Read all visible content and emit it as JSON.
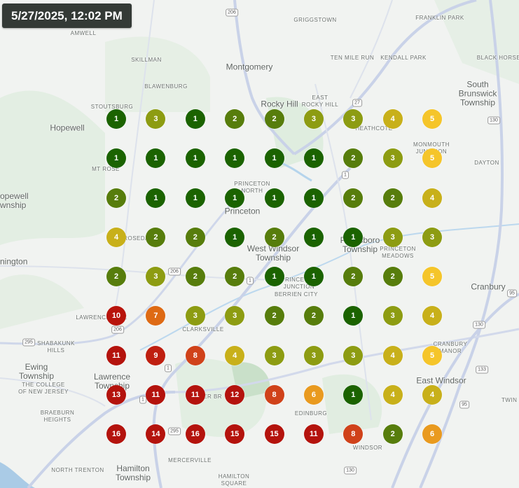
{
  "timestamp": "5/27/2025, 12:02 PM",
  "colors": {
    "1": "#1b6300",
    "2": "#577d0c",
    "3": "#8d9c12",
    "4": "#c8b01a",
    "5": "#f5c52a",
    "6": "#e99a1f",
    "7": "#de6a14",
    "8": "#d0421a",
    "9": "#bf1f10",
    "10": "#b8140c",
    "11": "#b4130d",
    "12": "#b4130d",
    "13": "#b4130d",
    "14": "#b4130d",
    "15": "#b4130d",
    "16": "#b4130d"
  },
  "grid_values": [
    [
      1,
      3,
      1,
      2,
      2,
      3,
      3,
      4,
      5
    ],
    [
      1,
      1,
      1,
      1,
      1,
      1,
      2,
      3,
      5
    ],
    [
      2,
      1,
      1,
      1,
      1,
      1,
      2,
      2,
      4
    ],
    [
      4,
      2,
      2,
      1,
      2,
      1,
      1,
      3,
      3
    ],
    [
      2,
      3,
      2,
      2,
      1,
      1,
      2,
      2,
      5
    ],
    [
      10,
      7,
      3,
      3,
      2,
      2,
      1,
      3,
      4
    ],
    [
      11,
      9,
      8,
      4,
      3,
      3,
      3,
      4,
      5
    ],
    [
      13,
      11,
      11,
      12,
      8,
      6,
      1,
      4,
      4
    ],
    [
      16,
      14,
      16,
      15,
      15,
      11,
      8,
      2,
      6
    ]
  ],
  "map_labels": {
    "griggstown": "GRIGGSTOWN",
    "franklin_park": "FRANKLIN PARK",
    "amwell": "AMWELL",
    "ten_mile_run": "TEN MILE RUN",
    "kendall_park": "KENDALL PARK",
    "black_horse": "BLACK HORSE",
    "skillman": "SKILLMAN",
    "montgomery": "Montgomery",
    "blawenburg": "BLAWENBURG",
    "south_brunswick": "South\nBrunswick\nTownship",
    "stoutsburg": "STOUTSBURG",
    "rocky_hill": "Rocky Hill",
    "east_rocky_hill": "EAST\nROCKY HILL",
    "hopewell": "Hopewell",
    "heathcote": "HEATHCOTE",
    "monmouth_junction": "MONMOUTH\nJUNCTION",
    "dayton": "DAYTON",
    "mt_rose": "MT ROSE",
    "princeton_north": "PRINCETON\nNORTH",
    "hopewell_township": "opewell\nwnship",
    "princeton": "Princeton",
    "west_windsor": "West Windsor\nTownship",
    "plainsboro": "Plainsboro\nTownship",
    "princeton_meadows": "PRINCETON\nMEADOWS",
    "pennington": "nington",
    "rosedale": "ROSEDALE",
    "princeton_junction": "PRINCETON\nJUNCTION",
    "berrien_city": "BERRIEN CITY",
    "cranbury": "Cranbury",
    "lawrenceville": "LAWRENCEVILLE",
    "clarksville": "CLARKSVILLE",
    "shabakunk_hills": "SHABAKUNK\nHILLS",
    "cranbury_manor": "CRANBURY\nMANOR",
    "ewing": "Ewing\nTownship",
    "college_nj": "THE COLLEGE\nOF NEW JERSEY",
    "lawrence": "Lawrence\nTownship",
    "east_windsor": "East Windsor",
    "twin_rivers": "TWIN R",
    "braeburn": "BRAEBURN\nHEIGHTS",
    "edinburg": "EDINBURG",
    "windsor": "WINDSOR",
    "north_trenton": "NORTH TRENTON",
    "hamilton": "Hamilton\nTownship",
    "mercerville": "MERCERVILLE",
    "hamilton_square": "HAMILTON\nSQUARE",
    "mercer_br": "MER BR"
  },
  "route_shields": [
    "206",
    "27",
    "1",
    "130",
    "206",
    "1",
    "206",
    "1",
    "295",
    "95",
    "130",
    "133",
    "95",
    "1",
    "295",
    "130"
  ]
}
